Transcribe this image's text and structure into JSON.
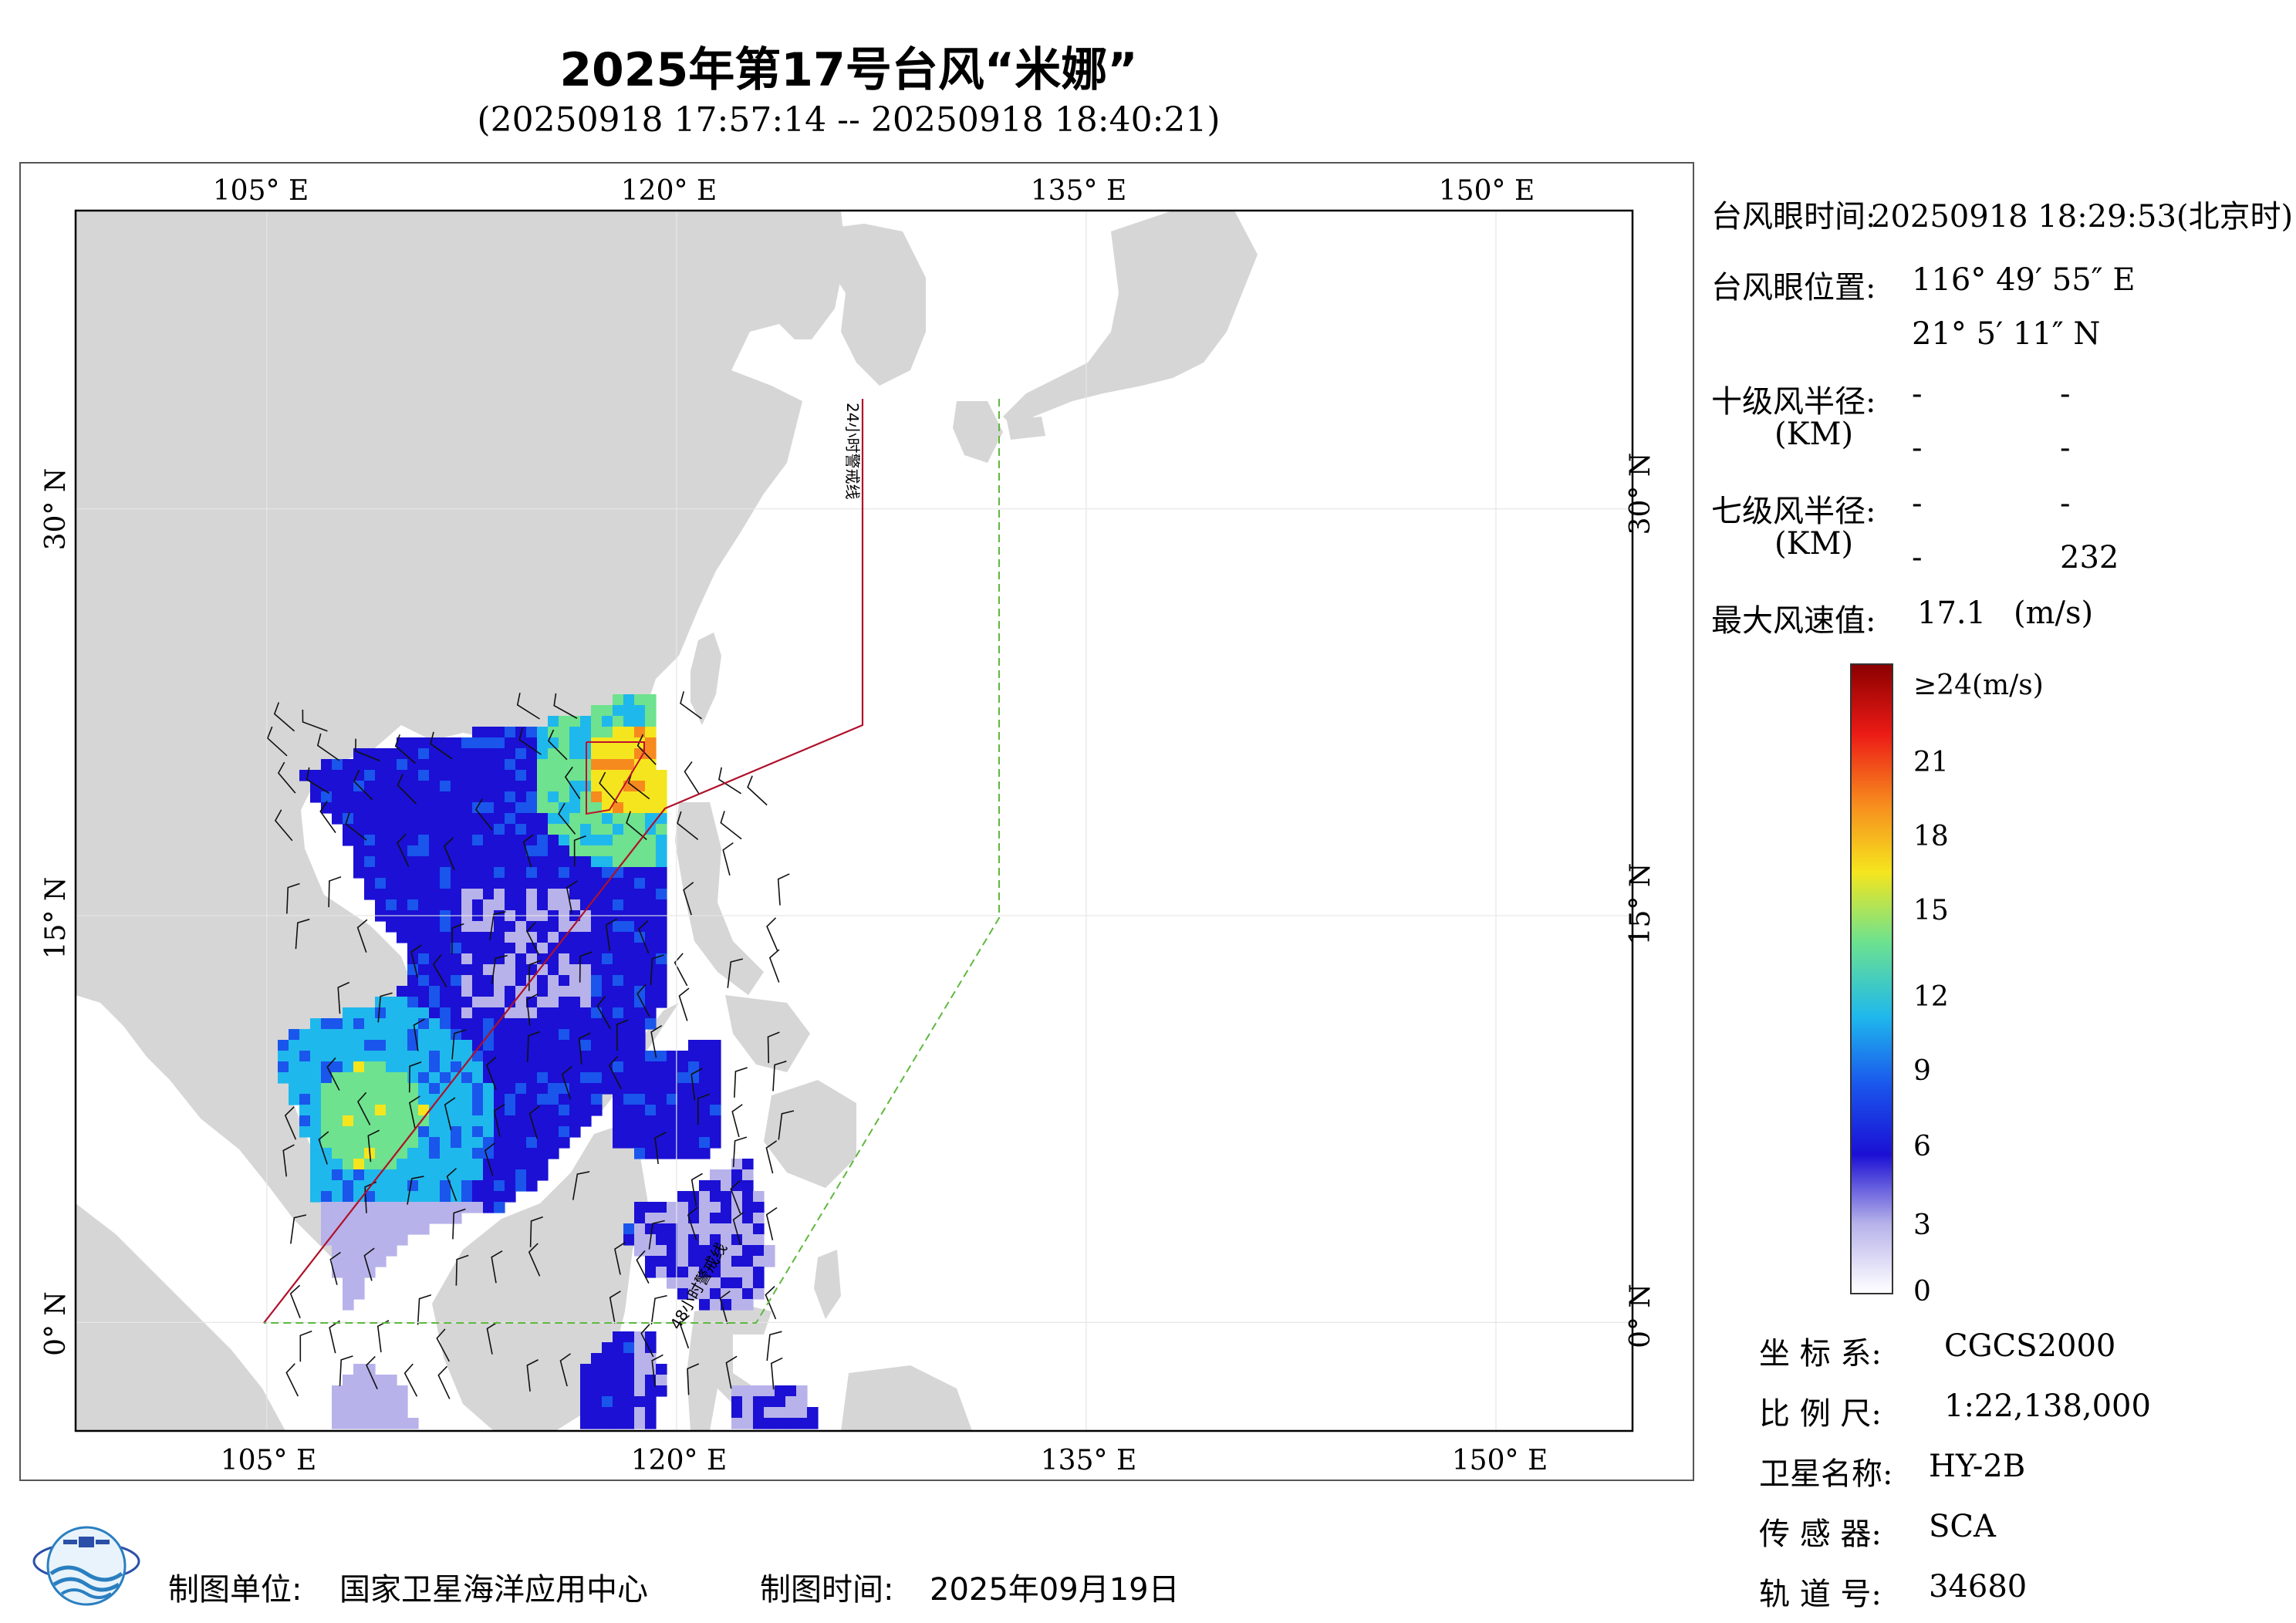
{
  "header": {
    "title": "2025年第17号台风“米娜”",
    "subtitle": "(20250918 17:57:14 -- 20250918 18:40:21)"
  },
  "map": {
    "lon_ticks": [
      "105° E",
      "120° E",
      "135° E",
      "150° E"
    ],
    "lat_ticks": [
      "30° N",
      "15° N",
      "0° N"
    ],
    "lon_range": [
      98,
      155
    ],
    "lat_range": [
      -4,
      41
    ],
    "line_24h_label": "24小时警戒线",
    "line_48h_label": "48小时警戒线",
    "colors": {
      "land": "#d6d6d6",
      "sea": "#ffffff",
      "line_24h": "#b0102a",
      "line_48h": "#5fb83f"
    }
  },
  "info": {
    "eye_time_label": "台风眼时间:",
    "eye_time_value": "20250918 18:29:53(北京时)",
    "eye_pos_label": "台风眼位置:",
    "eye_lon": "116° 49′ 55″ E",
    "eye_lat": "21° 5′ 11″ N",
    "r10_label": "十级风半径:",
    "r10_unit": "(KM)",
    "r10_values": [
      "-",
      "-",
      "-",
      "-"
    ],
    "r7_label": "七级风半径:",
    "r7_unit": "(KM)",
    "r7_values": [
      "-",
      "-",
      "-",
      "232"
    ],
    "max_wind_label": "最大风速值:",
    "max_wind_value": "17.1",
    "max_wind_unit": "(m/s)"
  },
  "colorbar": {
    "ticks": [
      "≥24(m/s)",
      "21",
      "18",
      "15",
      "12",
      "9",
      "6",
      "3",
      "0"
    ],
    "colors": [
      "#ffffff",
      "#b7b2ea",
      "#1b10d4",
      "#1a55ec",
      "#1fb8ec",
      "#6ee28e",
      "#f5e51e",
      "#f78a1e",
      "#ec1b16",
      "#8b0000"
    ]
  },
  "meta": {
    "crs_label": "坐 标 系:",
    "crs_value": "CGCS2000",
    "scale_label": "比 例 尺:",
    "scale_value": "1:22,138,000",
    "satellite_label": "卫星名称:",
    "satellite_value": "HY-2B",
    "sensor_label": "传 感 器:",
    "sensor_value": "SCA",
    "orbit_label": "轨 道 号:",
    "orbit_value": "34680"
  },
  "footer": {
    "producer_label": "制图单位:",
    "producer_value": "国家卫星海洋应用中心",
    "date_label": "制图时间:",
    "date_value": "2025年09月19日"
  }
}
